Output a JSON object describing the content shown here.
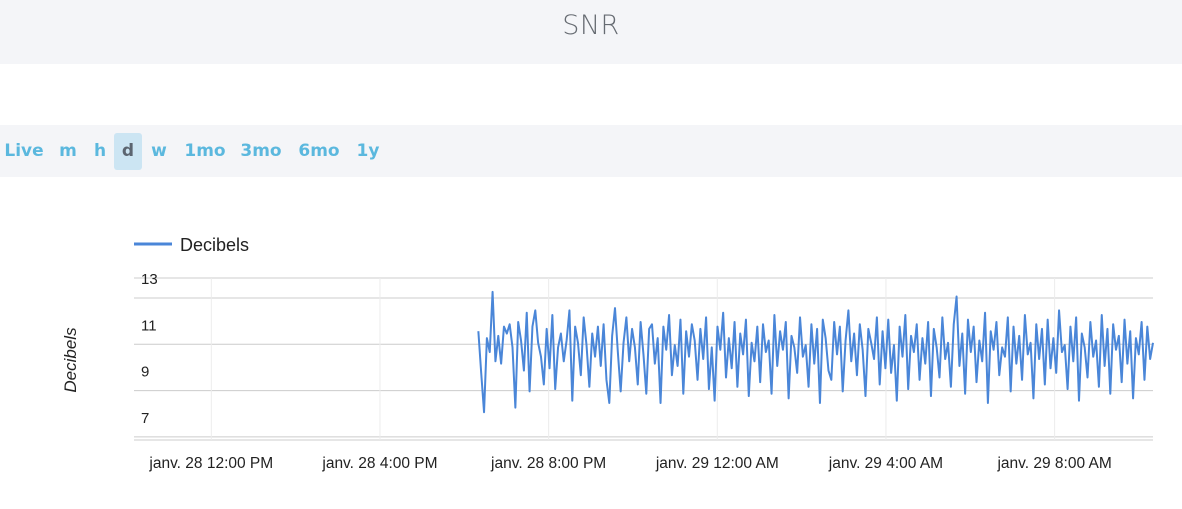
{
  "header": {
    "title": "SNR"
  },
  "range_selector": {
    "items": [
      {
        "label": "Live",
        "active": false
      },
      {
        "label": "m",
        "active": false
      },
      {
        "label": "h",
        "active": false
      },
      {
        "label": "d",
        "active": true
      },
      {
        "label": "w",
        "active": false
      },
      {
        "label": "1mo",
        "active": false
      },
      {
        "label": "3mo",
        "active": false
      },
      {
        "label": "6mo",
        "active": false
      },
      {
        "label": "1y",
        "active": false
      }
    ]
  },
  "chart_data": {
    "type": "line",
    "ylabel": "Decibels",
    "xlabel": "",
    "ylim": [
      6,
      13
    ],
    "y_ticks": [
      13,
      11,
      9,
      7
    ],
    "x_tick_labels": [
      "janv. 28 12:00 PM",
      "janv. 28 4:00 PM",
      "janv. 28 8:00 PM",
      "janv. 29 12:00 AM",
      "janv. 29 4:00 AM",
      "janv. 29 8:00 AM"
    ],
    "x_range": [
      "janv. 28 10:10 AM",
      "janv. 29 10:20 AM"
    ],
    "grid": true,
    "legend": "top-left",
    "series": [
      {
        "name": "Decibels",
        "color": "#4a86d8",
        "x_start": "janv. 28 6:20 PM",
        "x_end": "janv. 29 10:20 AM",
        "values": [
          10.7,
          8.9,
          7.2,
          10.4,
          9.8,
          12.4,
          9.4,
          10.5,
          9.3,
          10.9,
          10.6,
          11.0,
          10.0,
          7.4,
          11.1,
          10.3,
          9.0,
          11.5,
          8.1,
          10.9,
          11.6,
          10.2,
          9.6,
          8.4,
          10.8,
          9.1,
          11.4,
          8.2,
          10.0,
          10.6,
          9.4,
          10.3,
          11.6,
          7.7,
          10.9,
          10.2,
          8.8,
          11.3,
          10.1,
          8.3,
          10.6,
          9.6,
          10.9,
          9.2,
          11.0,
          8.6,
          7.6,
          10.5,
          11.7,
          9.8,
          8.1,
          10.2,
          11.3,
          9.4,
          10.8,
          10.0,
          8.4,
          11.1,
          9.7,
          8.0,
          10.8,
          11.0,
          9.3,
          10.4,
          7.6,
          10.9,
          9.9,
          11.4,
          8.8,
          10.1,
          9.2,
          11.2,
          8.0,
          10.7,
          9.6,
          11.0,
          10.3,
          8.6,
          10.8,
          9.5,
          11.3,
          8.2,
          10.0,
          7.7,
          10.9,
          9.9,
          11.5,
          8.7,
          10.4,
          9.1,
          11.1,
          8.3,
          10.6,
          9.7,
          11.2,
          7.9,
          10.2,
          9.4,
          10.9,
          8.5,
          11.0,
          9.8,
          10.3,
          8.0,
          11.4,
          9.2,
          10.7,
          9.9,
          11.1,
          7.8,
          10.5,
          10.0,
          8.9,
          11.3,
          9.6,
          10.1,
          8.3,
          11.0,
          9.3,
          10.8,
          7.6,
          11.2,
          10.4,
          9.0,
          8.6,
          11.1,
          9.7,
          10.9,
          8.1,
          10.3,
          11.6,
          9.4,
          10.6,
          8.8,
          11.0,
          9.9,
          7.9,
          10.8,
          10.2,
          9.5,
          11.3,
          8.4,
          10.7,
          9.1,
          11.2,
          8.9,
          10.1,
          7.7,
          10.9,
          9.6,
          11.4,
          8.2,
          10.5,
          9.8,
          11.0,
          8.6,
          10.4,
          9.3,
          11.1,
          7.9,
          10.8,
          10.0,
          8.7,
          11.3,
          9.5,
          10.2,
          8.3,
          11.0,
          12.2,
          9.2,
          10.6,
          8.0,
          11.2,
          9.8,
          10.9,
          8.5,
          10.3,
          9.4,
          11.5,
          7.6,
          10.7,
          9.9,
          11.1,
          8.8,
          10.0,
          9.6,
          11.3,
          8.1,
          10.9,
          9.3,
          10.5,
          8.6,
          11.4,
          9.7,
          10.2,
          7.8,
          11.0,
          9.5,
          10.8,
          8.4,
          11.2,
          9.1,
          10.4,
          8.9,
          11.6,
          9.8,
          10.1,
          8.2,
          10.9,
          9.4,
          11.3,
          7.7,
          10.6,
          10.0,
          8.7,
          11.1,
          9.6,
          10.3,
          8.3,
          11.4,
          9.2,
          10.8,
          8.0,
          11.0,
          9.9,
          10.5,
          8.5,
          11.2,
          9.3,
          10.7,
          7.8,
          10.4,
          9.7,
          11.1,
          8.6,
          10.9,
          9.5,
          10.2
        ]
      }
    ]
  }
}
